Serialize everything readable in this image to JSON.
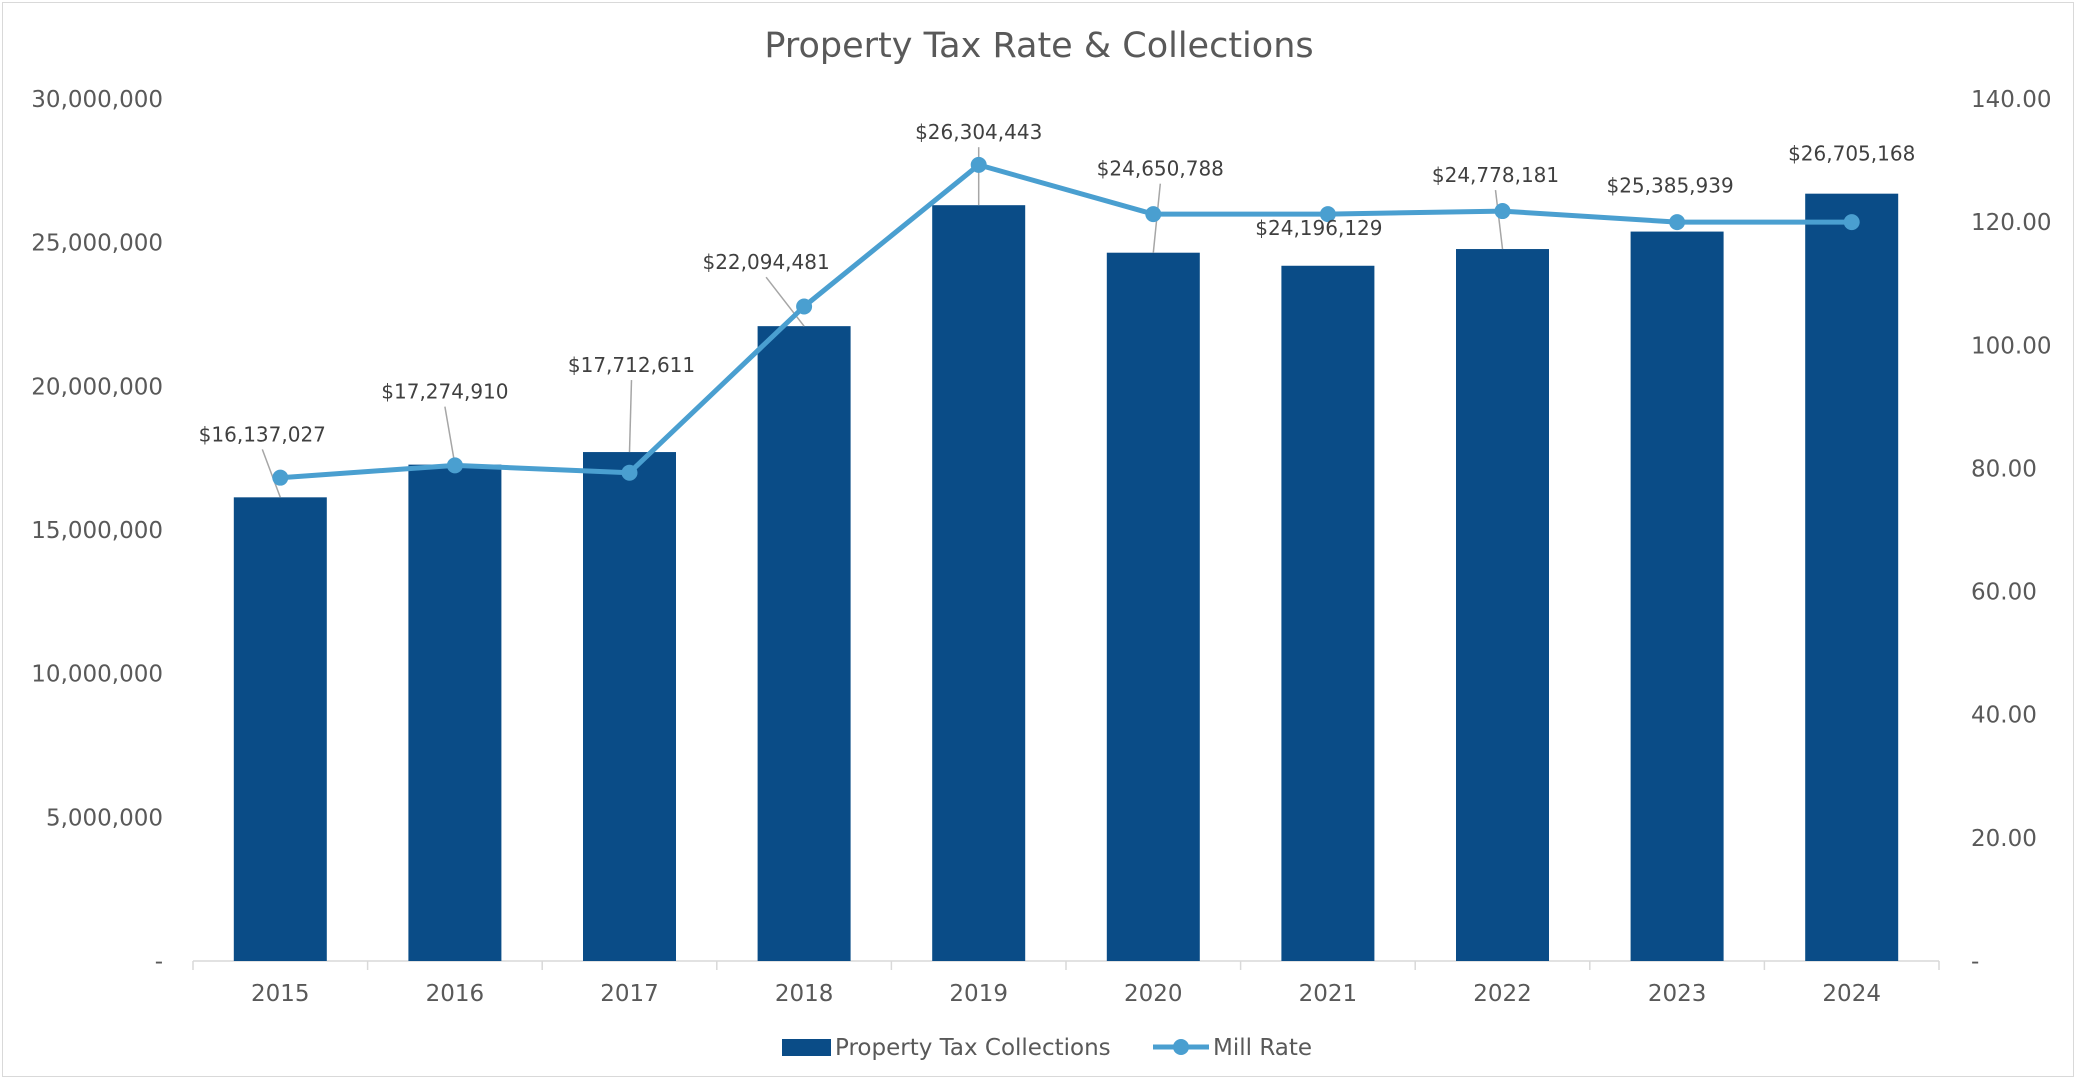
{
  "chart_data": {
    "type": "bar+line",
    "title": "Property Tax Rate & Collections",
    "categories": [
      "2015",
      "2016",
      "2017",
      "2018",
      "2019",
      "2020",
      "2021",
      "2022",
      "2023",
      "2024"
    ],
    "series": [
      {
        "name": "Property Tax Collections",
        "type": "bar",
        "axis": "left",
        "color": "#0a4c87",
        "values": [
          16137027,
          17274910,
          17712611,
          22094481,
          26304443,
          24650788,
          24196129,
          24778181,
          25385939,
          26705168
        ],
        "labels": [
          "$16,137,027",
          "$17,274,910",
          "$17,712,611",
          "$22,094,481",
          "$26,304,443",
          "$24,650,788",
          "$24,196,129",
          "$24,778,181",
          "$25,385,939",
          "$26,705,168"
        ]
      },
      {
        "name": "Mill Rate",
        "type": "line",
        "axis": "right",
        "color": "#4a9fd0",
        "values": [
          78.5,
          80.5,
          79.3,
          106.3,
          129.3,
          121.3,
          121.3,
          121.8,
          120.0,
          120.0
        ]
      }
    ],
    "y_left": {
      "ylim": [
        0,
        30000000
      ],
      "ticks": [
        0,
        5000000,
        10000000,
        15000000,
        20000000,
        25000000,
        30000000
      ],
      "tick_labels": [
        "-",
        "5,000,000",
        "10,000,000",
        "15,000,000",
        "20,000,000",
        "25,000,000",
        "30,000,000"
      ]
    },
    "y_right": {
      "ylim": [
        0,
        140
      ],
      "ticks": [
        0,
        20,
        40,
        60,
        80,
        100,
        120,
        140
      ],
      "tick_labels": [
        "-",
        "20.00",
        "40.00",
        "60.00",
        "80.00",
        "100.00",
        "120.00",
        "140.00"
      ]
    },
    "grid": false,
    "legend": "bottom"
  }
}
